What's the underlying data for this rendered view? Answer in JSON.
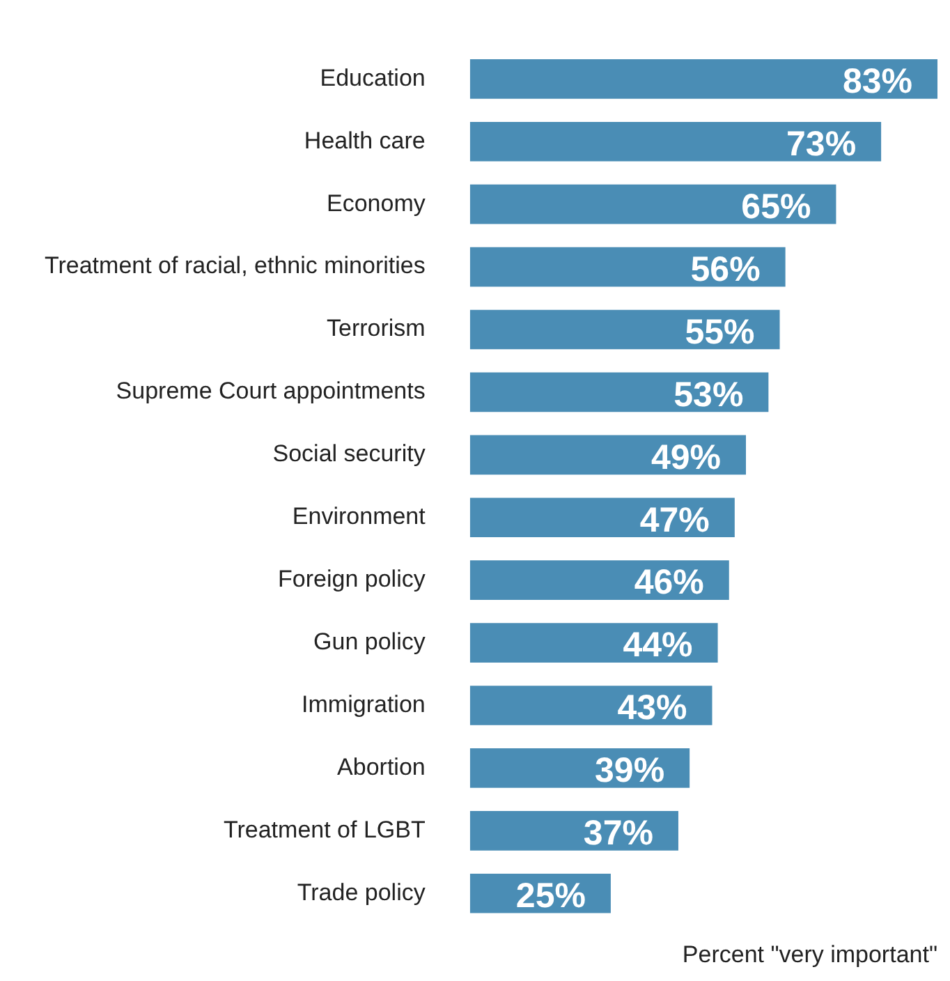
{
  "chart_data": {
    "type": "bar",
    "orientation": "horizontal",
    "relative": false,
    "xlabel": "Percent \"very important\"",
    "categories": [
      "Education",
      "Health care",
      "Economy",
      "Treatment of racial, ethnic minorities",
      "Terrorism",
      "Supreme Court appointments",
      "Social security",
      "Environment",
      "Foreign policy",
      "Gun policy",
      "Immigration",
      "Abortion",
      "Treatment of LGBT",
      "Trade policy"
    ],
    "values": [
      83,
      73,
      65,
      56,
      55,
      53,
      49,
      47,
      46,
      44,
      43,
      39,
      37,
      25
    ],
    "value_labels": [
      "83%",
      "73%",
      "65%",
      "56%",
      "55%",
      "53%",
      "49%",
      "47%",
      "46%",
      "44%",
      "43%",
      "39%",
      "37%",
      "25%"
    ],
    "color": "#4a8db5",
    "grid": false,
    "legend": false
  }
}
